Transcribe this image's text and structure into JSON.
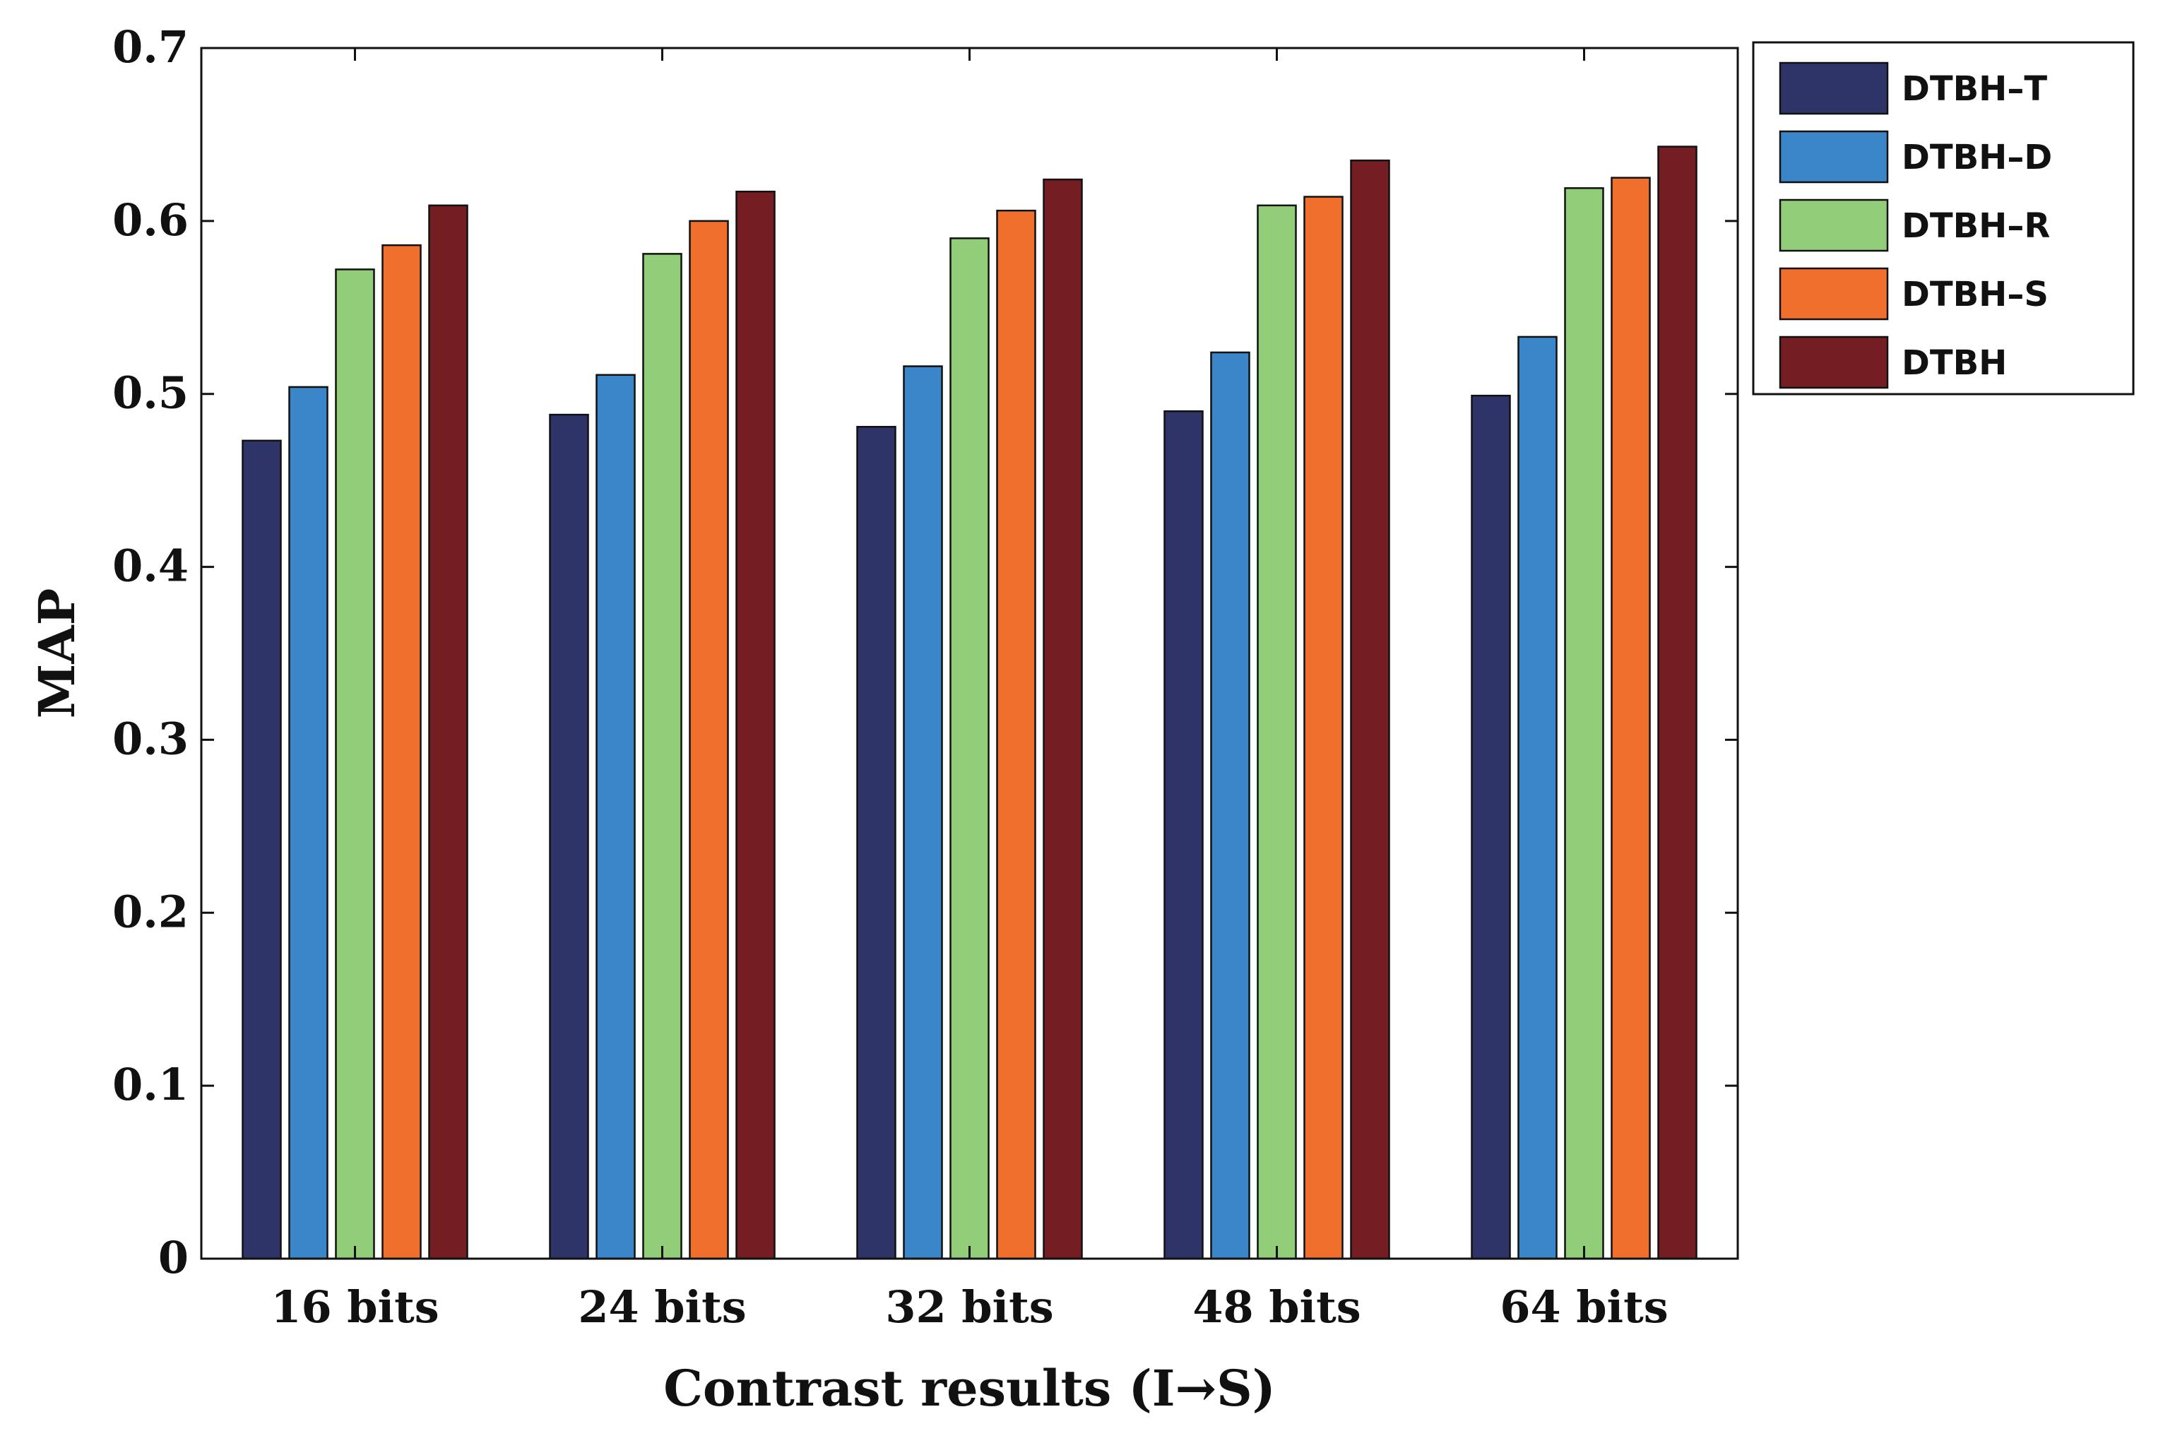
{
  "chart_data": {
    "type": "bar",
    "title": "",
    "xlabel": "Contrast results (I→S)",
    "ylabel": "MAP",
    "categories": [
      "16 bits",
      "24 bits",
      "32 bits",
      "48 bits",
      "64 bits"
    ],
    "ylim": [
      0,
      0.7
    ],
    "yticks": [
      "0",
      "0.1",
      "0.2",
      "0.3",
      "0.4",
      "0.5",
      "0.6",
      "0.7"
    ],
    "ytick_values": [
      0,
      0.1,
      0.2,
      0.3,
      0.4,
      0.5,
      0.6,
      0.7
    ],
    "grid": false,
    "legend_position": "outside-top-right",
    "series": [
      {
        "name": "DTBH–T",
        "color": "#2e3468",
        "values": [
          0.473,
          0.488,
          0.481,
          0.49,
          0.499
        ]
      },
      {
        "name": "DTBH–D",
        "color": "#3a86c8",
        "values": [
          0.504,
          0.511,
          0.516,
          0.524,
          0.533
        ]
      },
      {
        "name": "DTBH–R",
        "color": "#92cd7a",
        "values": [
          0.572,
          0.581,
          0.59,
          0.609,
          0.619
        ]
      },
      {
        "name": "DTBH–S",
        "color": "#f06f2c",
        "values": [
          0.586,
          0.6,
          0.606,
          0.614,
          0.625
        ]
      },
      {
        "name": "DTBH",
        "color": "#741d22",
        "values": [
          0.609,
          0.617,
          0.624,
          0.635,
          0.643
        ]
      }
    ]
  }
}
